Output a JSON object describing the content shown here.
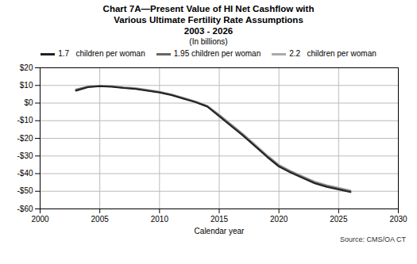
{
  "chart_data": {
    "type": "line",
    "title": "Chart 7A—Present Value of HI Net Cashflow with\nVarious Ultimate Fertility Rate Assumptions\n2003 - 2026",
    "subtitle": "(In billions)",
    "xlabel": "Calendar year",
    "source": "Source: CMS/OA CT",
    "x": [
      2003,
      2004,
      2005,
      2006,
      2007,
      2008,
      2009,
      2010,
      2011,
      2012,
      2013,
      2014,
      2015,
      2016,
      2017,
      2018,
      2019,
      2020,
      2021,
      2022,
      2023,
      2024,
      2025,
      2026
    ],
    "series": [
      {
        "name": "1.7   children per woman",
        "color": "#222222",
        "values": [
          7.0,
          9.0,
          9.5,
          9.2,
          8.5,
          8.0,
          7.0,
          6.0,
          4.5,
          2.5,
          0.5,
          -2.0,
          -7.5,
          -13.0,
          -18.5,
          -24.5,
          -30.5,
          -36.0,
          -39.5,
          -42.5,
          -45.5,
          -47.5,
          -49.0,
          -50.5
        ]
      },
      {
        "name": "1.95 children per woman",
        "color": "#666666",
        "values": [
          7.5,
          9.2,
          9.7,
          9.4,
          8.7,
          8.2,
          7.2,
          6.2,
          4.7,
          2.7,
          0.7,
          -1.8,
          -7.0,
          -12.5,
          -18.0,
          -24.0,
          -30.0,
          -35.5,
          -39.0,
          -42.0,
          -45.0,
          -47.0,
          -48.5,
          -50.0
        ]
      },
      {
        "name": "2.2   children per woman",
        "color": "#aaaaaa",
        "values": [
          7.8,
          9.5,
          9.9,
          9.7,
          9.0,
          8.5,
          7.5,
          6.5,
          5.0,
          3.0,
          1.0,
          -1.5,
          -6.5,
          -12.0,
          -17.5,
          -23.5,
          -29.5,
          -35.0,
          -38.5,
          -41.5,
          -44.5,
          -46.5,
          -48.0,
          -49.5
        ]
      }
    ],
    "xlim": [
      2000,
      2030
    ],
    "ylim": [
      -60,
      20
    ],
    "xticks": [
      2000,
      2005,
      2010,
      2015,
      2020,
      2025,
      2030
    ],
    "yticks": [
      {
        "value": -60,
        "label": "-$60"
      },
      {
        "value": -50,
        "label": "-$50"
      },
      {
        "value": -40,
        "label": "-$40"
      },
      {
        "value": -30,
        "label": "-$30"
      },
      {
        "value": -20,
        "label": "-$20"
      },
      {
        "value": -10,
        "label": "-$10"
      },
      {
        "value": 0,
        "label": "$0"
      },
      {
        "value": 10,
        "label": "$10"
      },
      {
        "value": 20,
        "label": "$20"
      }
    ],
    "grid": true,
    "legend": "top"
  }
}
